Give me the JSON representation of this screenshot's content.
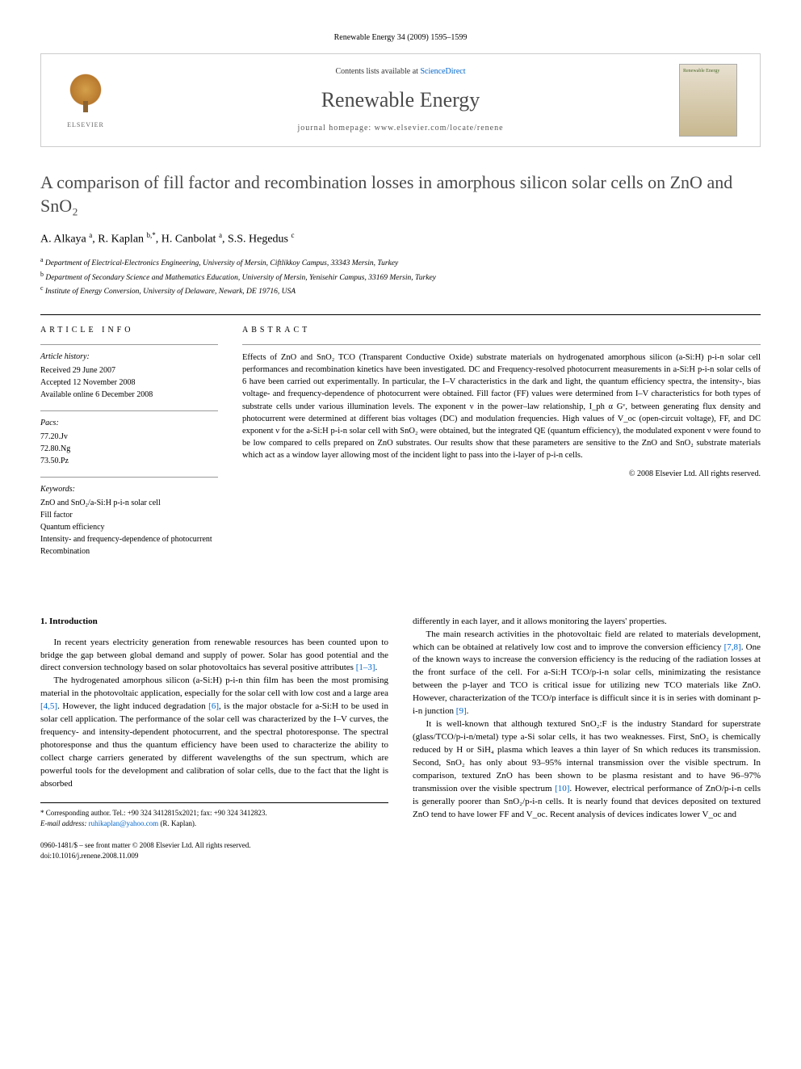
{
  "header": {
    "citation": "Renewable Energy 34 (2009) 1595–1599"
  },
  "banner": {
    "contents_prefix": "Contents lists available at ",
    "contents_link": "ScienceDirect",
    "journal": "Renewable Energy",
    "homepage_prefix": "journal homepage: ",
    "homepage_url": "www.elsevier.com/locate/renene",
    "publisher": "ELSEVIER",
    "cover_text": "Renewable Energy"
  },
  "article": {
    "title": "A comparison of fill factor and recombination losses in amorphous silicon solar cells on ZnO and SnO₂",
    "authors_html": "A. Alkaya <sup>a</sup>, R. Kaplan <sup>b,*</sup>, H. Canbolat <sup>a</sup>, S.S. Hegedus <sup>c</sup>",
    "affiliations": [
      {
        "sup": "a",
        "text": "Department of Electrical-Electronics Engineering, University of Mersin, Ciftlikkoy Campus, 33343 Mersin, Turkey"
      },
      {
        "sup": "b",
        "text": "Department of Secondary Science and Mathematics Education, University of Mersin, Yenisehir Campus, 33169 Mersin, Turkey"
      },
      {
        "sup": "c",
        "text": "Institute of Energy Conversion, University of Delaware, Newark, DE 19716, USA"
      }
    ]
  },
  "info": {
    "heading": "ARTICLE INFO",
    "history_label": "Article history:",
    "history": [
      "Received 29 June 2007",
      "Accepted 12 November 2008",
      "Available online 6 December 2008"
    ],
    "pacs_label": "Pacs:",
    "pacs": [
      "77.20.Jv",
      "72.80.Ng",
      "73.50.Pz"
    ],
    "keywords_label": "Keywords:",
    "keywords": [
      "ZnO and SnO₂/a-Si:H p-i-n solar cell",
      "Fill factor",
      "Quantum efficiency",
      "Intensity- and frequency-dependence of photocurrent",
      "Recombination"
    ]
  },
  "abstract": {
    "heading": "ABSTRACT",
    "text": "Effects of ZnO and SnO₂ TCO (Transparent Conductive Oxide) substrate materials on hydrogenated amorphous silicon (a-Si:H) p-i-n solar cell performances and recombination kinetics have been investigated. DC and Frequency-resolved photocurrent measurements in a-Si:H p-i-n solar cells of 6 have been carried out experimentally. In particular, the I–V characteristics in the dark and light, the quantum efficiency spectra, the intensity-, bias voltage- and frequency-dependence of photocurrent were obtained. Fill factor (FF) values were determined from I–V characteristics for both types of substrate cells under various illumination levels. The exponent ν in the power–law relationship, I_ph α Gᵛ, between generating flux density and photocurrent were determined at different bias voltages (DC) and modulation frequencies. High values of V_oc (open-circuit voltage), FF, and DC exponent ν for the a-Si:H p-i-n solar cell with SnO₂ were obtained, but the integrated QE (quantum efficiency), the modulated exponent ν were found to be low compared to cells prepared on ZnO substrates. Our results show that these parameters are sensitive to the ZnO and SnO₂ substrate materials which act as a window layer allowing most of the incident light to pass into the i-layer of p-i-n cells.",
    "copyright": "© 2008 Elsevier Ltd. All rights reserved."
  },
  "body": {
    "section_heading": "1. Introduction",
    "col1_p1": "In recent years electricity generation from renewable resources has been counted upon to bridge the gap between global demand and supply of power. Solar has good potential and the direct conversion technology based on solar photovoltaics has several positive attributes ",
    "col1_p1_ref": "[1–3]",
    "col1_p1_end": ".",
    "col1_p2a": "The hydrogenated amorphous silicon (a-Si:H) p-i-n thin film has been the most promising material in the photovoltaic application, especially for the solar cell with low cost and a large area ",
    "col1_p2_ref1": "[4,5]",
    "col1_p2b": ". However, the light induced degradation ",
    "col1_p2_ref2": "[6]",
    "col1_p2c": ", is the major obstacle for a-Si:H to be used in solar cell application. The performance of the solar cell was characterized by the I–V curves, the frequency- and intensity-dependent photocurrent, and the spectral photoresponse. The spectral photoresponse and thus the quantum efficiency have been used to characterize the ability to collect charge carriers generated by different wavelengths of the sun spectrum, which are powerful tools for the development and calibration of solar cells, due to the fact that the light is absorbed",
    "col2_p1": "differently in each layer, and it allows monitoring the layers' properties.",
    "col2_p2a": "The main research activities in the photovoltaic field are related to materials development, which can be obtained at relatively low cost and to improve the conversion efficiency ",
    "col2_p2_ref1": "[7,8]",
    "col2_p2b": ". One of the known ways to increase the conversion efficiency is the reducing of the radiation losses at the front surface of the cell. For a-Si:H TCO/p-i-n solar cells, minimizating the resistance between the p-layer and TCO is critical issue for utilizing new TCO materials like ZnO. However, characterization of the TCO/p interface is difficult since it is in series with dominant p-i-n junction ",
    "col2_p2_ref2": "[9]",
    "col2_p2c": ".",
    "col2_p3a": "It is well-known that although textured SnO₂:F is the industry Standard for superstrate (glass/TCO/p-i-n/metal) type a-Si solar cells, it has two weaknesses. First, SnO₂ is chemically reduced by H or SiH₄ plasma which leaves a thin layer of Sn which reduces its transmission. Second, SnO₂ has only about 93–95% internal transmission over the visible spectrum. In comparison, textured ZnO has been shown to be plasma resistant and to have 96–97% transmission over the visible spectrum ",
    "col2_p3_ref": "[10]",
    "col2_p3b": ". However, electrical performance of ZnO/p-i-n cells is generally poorer than SnO₂/p-i-n cells. It is nearly found that devices deposited on textured ZnO tend to have lower FF and V_oc. Recent analysis of devices indicates lower V_oc and"
  },
  "footnote": {
    "corr": "* Corresponding author. Tel.: +90 324 3412815x2021; fax: +90 324 3412823.",
    "email_label": "E-mail address: ",
    "email": "ruhikaplan@yahoo.com",
    "email_suffix": " (R. Kaplan)."
  },
  "footer": {
    "line1": "0960-1481/$ – see front matter © 2008 Elsevier Ltd. All rights reserved.",
    "line2": "doi:10.1016/j.renene.2008.11.009"
  },
  "colors": {
    "link": "#0066cc",
    "text": "#000000",
    "heading_gray": "#4a4a4a",
    "border_light": "#cccccc",
    "border_med": "#999999"
  }
}
